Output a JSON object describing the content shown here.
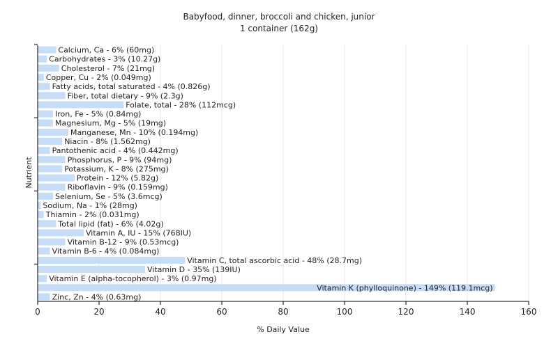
{
  "chart_data": {
    "type": "bar",
    "orientation": "horizontal",
    "title": "Babyfood, dinner, broccoli and chicken, junior",
    "subtitle": "1 container (162g)",
    "xlabel": "% Daily Value",
    "ylabel": "Nutrient",
    "xlim": [
      0,
      160
    ],
    "xticks": [
      "0",
      "20",
      "40",
      "60",
      "80",
      "100",
      "120",
      "140",
      "160"
    ],
    "grid": true,
    "bar_color": "#c6dcf7",
    "categories": [
      "Calcium, Ca",
      "Carbohydrates",
      "Cholesterol",
      "Copper, Cu",
      "Fatty acids, total saturated",
      "Fiber, total dietary",
      "Folate, total",
      "Iron, Fe",
      "Magnesium, Mg",
      "Manganese, Mn",
      "Niacin",
      "Pantothenic acid",
      "Phosphorus, P",
      "Potassium, K",
      "Protein",
      "Riboflavin",
      "Selenium, Se",
      "Sodium, Na",
      "Thiamin",
      "Total lipid (fat)",
      "Vitamin A, IU",
      "Vitamin B-12",
      "Vitamin B-6",
      "Vitamin C, total ascorbic acid",
      "Vitamin D",
      "Vitamin E (alpha-tocopherol)",
      "Vitamin K (phylloquinone)",
      "Zinc, Zn"
    ],
    "values": [
      6,
      3,
      7,
      2,
      4,
      9,
      28,
      5,
      5,
      10,
      8,
      4,
      9,
      8,
      12,
      9,
      5,
      1,
      2,
      6,
      15,
      9,
      4,
      48,
      35,
      3,
      149,
      4
    ],
    "labels": [
      "Calcium, Ca - 6% (60mg)",
      "Carbohydrates - 3% (10.27g)",
      "Cholesterol - 7% (21mg)",
      "Copper, Cu - 2% (0.049mg)",
      "Fatty acids, total saturated - 4% (0.826g)",
      "Fiber, total dietary - 9% (2.3g)",
      "Folate, total - 28% (112mcg)",
      "Iron, Fe - 5% (0.84mg)",
      "Magnesium, Mg - 5% (19mg)",
      "Manganese, Mn - 10% (0.194mg)",
      "Niacin - 8% (1.562mg)",
      "Pantothenic acid - 4% (0.442mg)",
      "Phosphorus, P - 9% (94mg)",
      "Potassium, K - 8% (275mg)",
      "Protein - 12% (5.82g)",
      "Riboflavin - 9% (0.159mg)",
      "Selenium, Se - 5% (3.6mcg)",
      "Sodium, Na - 1% (28mg)",
      "Thiamin - 2% (0.031mg)",
      "Total lipid (fat) - 6% (4.02g)",
      "Vitamin A, IU - 15% (768IU)",
      "Vitamin B-12 - 9% (0.53mcg)",
      "Vitamin B-6 - 4% (0.084mg)",
      "Vitamin C, total ascorbic acid - 48% (28.7mg)",
      "Vitamin D - 35% (139IU)",
      "Vitamin E (alpha-tocopherol) - 3% (0.97mg)",
      "Vitamin K (phylloquinone) - 149% (119.1mcg)",
      "Zinc, Zn - 4% (0.63mg)"
    ]
  }
}
